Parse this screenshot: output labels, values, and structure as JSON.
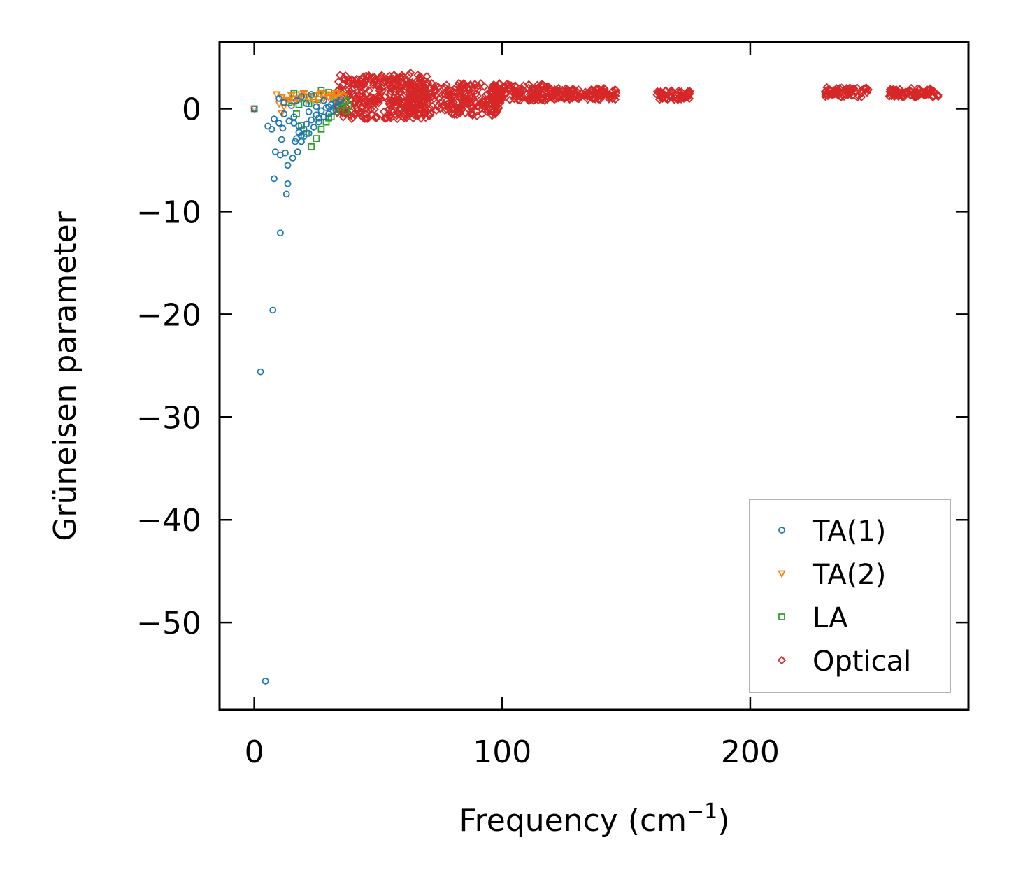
{
  "chart_data": {
    "type": "scatter",
    "title": "",
    "xlabel_main": "Frequency (cm",
    "xlabel_sup": "−1",
    "xlabel_close": ")",
    "ylabel": "Grüneisen parameter",
    "xlim": [
      -14,
      288
    ],
    "ylim": [
      -58.5,
      6.5
    ],
    "xticks": [
      0,
      100,
      200
    ],
    "yticks": [
      0,
      -10,
      -20,
      -30,
      -40,
      -50
    ],
    "xtick_labels": [
      "0",
      "100",
      "200"
    ],
    "ytick_labels": [
      "0",
      "−10",
      "−20",
      "−30",
      "−40",
      "−50"
    ],
    "legend_position": "lower-right",
    "series": [
      {
        "name": "TA(1)",
        "marker": "circle",
        "color": "#1f77b4",
        "points": [
          [
            0,
            0
          ],
          [
            2.5,
            -25.6
          ],
          [
            4.5,
            -55.7
          ],
          [
            7.5,
            -19.6
          ],
          [
            10.5,
            -12.1
          ],
          [
            13,
            -8.3
          ],
          [
            13.5,
            -7.3
          ],
          [
            8,
            -6.8
          ],
          [
            13.5,
            -5.5
          ],
          [
            15.5,
            -4.8
          ],
          [
            10.5,
            -4.5
          ],
          [
            12.5,
            -4.3
          ],
          [
            8.5,
            -4.2
          ],
          [
            17.5,
            -4.2
          ],
          [
            11,
            -3.0
          ],
          [
            16.5,
            -3.2
          ],
          [
            19,
            -3.2
          ],
          [
            5.5,
            -1.7
          ],
          [
            7,
            -2.0
          ],
          [
            11.5,
            -1.9
          ],
          [
            8,
            -1.0
          ],
          [
            10,
            -1.4
          ],
          [
            14,
            -1.2
          ],
          [
            18,
            -2.3
          ],
          [
            20,
            -2.7
          ],
          [
            21,
            -1.5
          ],
          [
            23,
            -1.1
          ],
          [
            25,
            -0.6
          ],
          [
            27,
            -0.2
          ],
          [
            29,
            0.1
          ],
          [
            31,
            0.4
          ],
          [
            33,
            0.6
          ],
          [
            35,
            0.9
          ],
          [
            12,
            -0.5
          ],
          [
            15,
            0.3
          ],
          [
            17,
            0.8
          ],
          [
            19,
            1.2
          ],
          [
            21,
            0.5
          ],
          [
            23,
            1.4
          ],
          [
            25,
            0.2
          ],
          [
            10,
            1.0
          ],
          [
            12,
            0.6
          ],
          [
            16,
            -0.8
          ],
          [
            22,
            -0.3
          ],
          [
            26,
            -0.9
          ],
          [
            28,
            0.8
          ],
          [
            30,
            0.2
          ],
          [
            32,
            0.1
          ],
          [
            34,
            0.7
          ],
          [
            20,
            -2.0
          ],
          [
            22,
            -2.4
          ],
          [
            18,
            -1.7
          ],
          [
            16,
            -1.4
          ],
          [
            24,
            -1.8
          ],
          [
            26,
            -1.3
          ],
          [
            28,
            -0.8
          ],
          [
            30,
            -0.5
          ],
          [
            32,
            -0.2
          ],
          [
            17,
            -2.9
          ],
          [
            19,
            -2.6
          ]
        ]
      },
      {
        "name": "TA(2)",
        "marker": "triangle-down",
        "color": "#ff7f0e",
        "points": [
          [
            0,
            0
          ],
          [
            9,
            1.4
          ],
          [
            11,
            1.1
          ],
          [
            13,
            0.9
          ],
          [
            15,
            1.3
          ],
          [
            17,
            1.0
          ],
          [
            19,
            1.4
          ],
          [
            21,
            1.2
          ],
          [
            23,
            1.1
          ],
          [
            25,
            1.3
          ],
          [
            27,
            1.5
          ],
          [
            29,
            1.4
          ],
          [
            31,
            1.3
          ],
          [
            33,
            1.5
          ],
          [
            35,
            1.3
          ],
          [
            10,
            0.5
          ],
          [
            12,
            0.2
          ],
          [
            14,
            0.8
          ],
          [
            16,
            0.6
          ],
          [
            18,
            0.9
          ],
          [
            20,
            1.5
          ],
          [
            22,
            0.7
          ],
          [
            24,
            0.9
          ],
          [
            26,
            0.6
          ],
          [
            28,
            1.0
          ],
          [
            30,
            1.1
          ],
          [
            32,
            0.8
          ],
          [
            34,
            1.0
          ],
          [
            36,
            1.2
          ],
          [
            11,
            -0.4
          ]
        ]
      },
      {
        "name": "LA",
        "marker": "square",
        "color": "#2ca02c",
        "points": [
          [
            0,
            0
          ],
          [
            23,
            -3.7
          ],
          [
            25,
            -2.9
          ],
          [
            21,
            -2.4
          ],
          [
            27,
            -2.0
          ],
          [
            19,
            -1.6
          ],
          [
            29,
            -1.3
          ],
          [
            31,
            -0.8
          ],
          [
            33,
            -0.3
          ],
          [
            35,
            0.4
          ],
          [
            37,
            0.8
          ],
          [
            38,
            0.3
          ],
          [
            36,
            1.2
          ],
          [
            34,
            1.5
          ],
          [
            27,
            1.8
          ],
          [
            24,
            1.2
          ],
          [
            26,
            0.9
          ],
          [
            28,
            1.4
          ],
          [
            30,
            1.6
          ],
          [
            32,
            1.1
          ],
          [
            35,
            0.1
          ],
          [
            37,
            -0.2
          ],
          [
            22,
            0.5
          ],
          [
            20,
            1.1
          ],
          [
            18,
            0.4
          ],
          [
            16,
            1.5
          ],
          [
            14,
            0.6
          ],
          [
            17,
            -0.5
          ],
          [
            30,
            -0.9
          ],
          [
            33,
            0.9
          ]
        ]
      },
      {
        "name": "Optical",
        "marker": "diamond",
        "color": "#d62728",
        "band_sets": [
          {
            "x": [
              33,
              70
            ],
            "y": [
              -1.0,
              3.3
            ],
            "count": 320
          },
          {
            "x": [
              62,
              100
            ],
            "y": [
              -0.7,
              2.6
            ],
            "count": 260
          },
          {
            "x": [
              95,
              120
            ],
            "y": [
              0.8,
              2.4
            ],
            "count": 120
          },
          {
            "x": [
              118,
              146
            ],
            "y": [
              0.9,
              2.0
            ],
            "count": 110
          },
          {
            "x": [
              162,
              176
            ],
            "y": [
              0.9,
              1.8
            ],
            "count": 55
          },
          {
            "x": [
              230,
              248
            ],
            "y": [
              1.1,
              2.1
            ],
            "count": 70
          },
          {
            "x": [
              256,
              276
            ],
            "y": [
              1.1,
              2.0
            ],
            "count": 75
          }
        ],
        "points": [
          [
            63,
            3.5
          ],
          [
            55,
            2.9
          ],
          [
            48,
            2.3
          ],
          [
            75,
            0.0
          ],
          [
            85,
            2.1
          ],
          [
            105,
            2.2
          ]
        ]
      }
    ]
  }
}
